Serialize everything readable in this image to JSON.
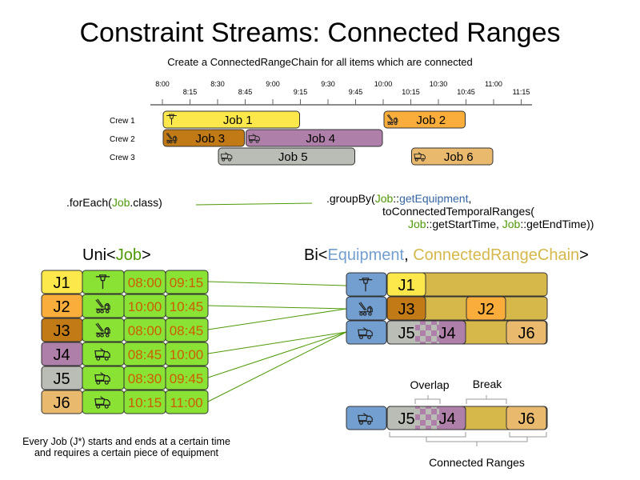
{
  "title": "Constraint Streams: Connected Ranges",
  "subtitle": "Create a ConnectedRangeChain for all items which are connected",
  "timeline": {
    "ticks": [
      "8:00",
      "8:15",
      "8:30",
      "8:45",
      "9:00",
      "9:15",
      "9:30",
      "9:45",
      "10:00",
      "10:15",
      "10:30",
      "10:45",
      "11:00",
      "11:15"
    ],
    "crews": [
      "Crew 1",
      "Crew 2",
      "Crew 3"
    ],
    "jobs": [
      {
        "label": "Job 1",
        "crew": 0,
        "start": "8:00",
        "end": "9:15",
        "icon": "jackhammer-icon",
        "color": "#fde84c"
      },
      {
        "label": "Job 2",
        "crew": 0,
        "start": "10:00",
        "end": "10:45",
        "icon": "crane-truck-icon",
        "color": "#fbad3c"
      },
      {
        "label": "Job 3",
        "crew": 1,
        "start": "8:00",
        "end": "8:45",
        "icon": "crane-truck-icon",
        "color": "#c17a16"
      },
      {
        "label": "Job 4",
        "crew": 1,
        "start": "8:45",
        "end": "10:00",
        "icon": "dump-truck-icon",
        "color": "#ae7fa8"
      },
      {
        "label": "Job 5",
        "crew": 2,
        "start": "8:30",
        "end": "9:45",
        "icon": "dump-truck-icon",
        "color": "#babdb6"
      },
      {
        "label": "Job 6",
        "crew": 2,
        "start": "10:15",
        "end": "11:00",
        "icon": "dump-truck-icon",
        "color": "#e9b96e"
      }
    ]
  },
  "code": {
    "foreach_prefix": ".forEach(",
    "foreach_class": "Job",
    "foreach_suffix": ".class)",
    "groupby_prefix": ".groupBy(",
    "groupby_job": "Job",
    "groupby_sep": "::",
    "groupby_method": "getEquipment",
    "groupby_comma": ",",
    "line2": "toConnectedTemporalRanges(",
    "line3_job1": "Job",
    "line3_m1": "::getStartTime, ",
    "line3_job2": "Job",
    "line3_m2": "::getEndTime))"
  },
  "uni": {
    "prefix": "Uni<",
    "type": "Job",
    "suffix": ">",
    "rows": [
      {
        "id": "J1",
        "icon": "jackhammer-icon",
        "start": "08:00",
        "end": "09:15",
        "color": "#fde84c"
      },
      {
        "id": "J2",
        "icon": "crane-truck-icon",
        "start": "10:00",
        "end": "10:45",
        "color": "#fbad3c"
      },
      {
        "id": "J3",
        "icon": "crane-truck-icon",
        "start": "08:00",
        "end": "08:45",
        "color": "#c17a16"
      },
      {
        "id": "J4",
        "icon": "dump-truck-icon",
        "start": "08:45",
        "end": "10:00",
        "color": "#ae7fa8"
      },
      {
        "id": "J5",
        "icon": "dump-truck-icon",
        "start": "08:30",
        "end": "09:45",
        "color": "#babdb6"
      },
      {
        "id": "J6",
        "icon": "dump-truck-icon",
        "start": "10:15",
        "end": "11:00",
        "color": "#e9b96e"
      }
    ]
  },
  "bi": {
    "prefix": "Bi<",
    "type1": "Equipment",
    "comma": ", ",
    "type2": "ConnectedRangeChain",
    "suffix": ">",
    "rows": [
      {
        "icon": "jackhammer-icon",
        "jobs": [
          "J1"
        ]
      },
      {
        "icon": "crane-truck-icon",
        "jobs": [
          "J3",
          "J2"
        ]
      },
      {
        "icon": "dump-truck-icon",
        "jobs": [
          "J5",
          "J4",
          "J6"
        ]
      }
    ]
  },
  "detail": {
    "jobs": [
      "J5",
      "J4",
      "J6"
    ],
    "overlap": "Overlap",
    "break": "Break",
    "connected": "Connected Ranges"
  },
  "footer": {
    "line1": "Every Job (J*) starts and ends at a certain time",
    "line2": "and requires a certain piece of equipment"
  },
  "colors": {
    "job_green": "#4e9a06",
    "equipment_blue": "#729fcf",
    "chain_gold": "#d6b84a",
    "time_red": "#ce5c00",
    "table_green": "#8ae234"
  }
}
